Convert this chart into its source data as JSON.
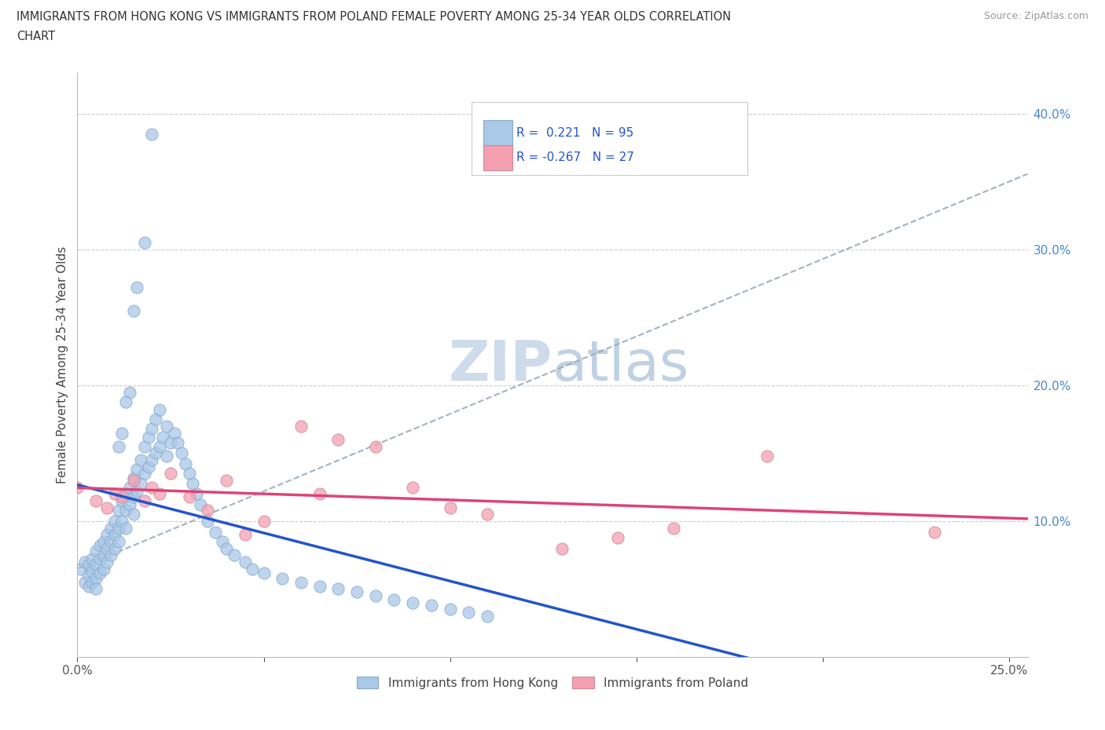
{
  "title_line1": "IMMIGRANTS FROM HONG KONG VS IMMIGRANTS FROM POLAND FEMALE POVERTY AMONG 25-34 YEAR OLDS CORRELATION",
  "title_line2": "CHART",
  "source": "Source: ZipAtlas.com",
  "ylabel": "Female Poverty Among 25-34 Year Olds",
  "xlim": [
    0.0,
    0.255
  ],
  "ylim": [
    0.0,
    0.43
  ],
  "hk_R": "0.221",
  "hk_N": "95",
  "pl_R": "-0.267",
  "pl_N": "27",
  "hk_color": "#aac8e8",
  "pl_color": "#f4a0b0",
  "trend_hk_color": "#2255cc",
  "trend_pl_color": "#dd4477",
  "trend_dash_color": "#99aabb",
  "watermark_color": "#c8d8e8",
  "legend_hk": "Immigrants from Hong Kong",
  "legend_pl": "Immigrants from Poland",
  "hk_x": [
    0.001,
    0.002,
    0.002,
    0.003,
    0.003,
    0.003,
    0.004,
    0.004,
    0.004,
    0.005,
    0.005,
    0.005,
    0.005,
    0.006,
    0.006,
    0.006,
    0.007,
    0.007,
    0.007,
    0.008,
    0.008,
    0.008,
    0.009,
    0.009,
    0.009,
    0.01,
    0.01,
    0.01,
    0.011,
    0.011,
    0.011,
    0.012,
    0.012,
    0.013,
    0.013,
    0.013,
    0.014,
    0.014,
    0.015,
    0.015,
    0.015,
    0.016,
    0.016,
    0.017,
    0.017,
    0.018,
    0.018,
    0.019,
    0.019,
    0.02,
    0.02,
    0.021,
    0.021,
    0.022,
    0.022,
    0.023,
    0.024,
    0.024,
    0.025,
    0.026,
    0.027,
    0.028,
    0.029,
    0.03,
    0.031,
    0.032,
    0.033,
    0.035,
    0.037,
    0.039,
    0.04,
    0.042,
    0.045,
    0.047,
    0.05,
    0.055,
    0.06,
    0.065,
    0.07,
    0.075,
    0.08,
    0.085,
    0.09,
    0.095,
    0.1,
    0.105,
    0.11,
    0.02,
    0.018,
    0.016,
    0.015,
    0.014,
    0.013,
    0.012,
    0.011
  ],
  "hk_y": [
    0.065,
    0.07,
    0.055,
    0.068,
    0.06,
    0.052,
    0.072,
    0.063,
    0.055,
    0.078,
    0.068,
    0.058,
    0.05,
    0.082,
    0.072,
    0.062,
    0.085,
    0.075,
    0.065,
    0.09,
    0.08,
    0.07,
    0.095,
    0.085,
    0.075,
    0.1,
    0.09,
    0.08,
    0.108,
    0.095,
    0.085,
    0.115,
    0.1,
    0.12,
    0.108,
    0.095,
    0.125,
    0.112,
    0.132,
    0.118,
    0.105,
    0.138,
    0.122,
    0.145,
    0.128,
    0.155,
    0.135,
    0.162,
    0.14,
    0.168,
    0.145,
    0.175,
    0.15,
    0.182,
    0.155,
    0.162,
    0.17,
    0.148,
    0.158,
    0.165,
    0.158,
    0.15,
    0.142,
    0.135,
    0.128,
    0.12,
    0.112,
    0.1,
    0.092,
    0.085,
    0.08,
    0.075,
    0.07,
    0.065,
    0.062,
    0.058,
    0.055,
    0.052,
    0.05,
    0.048,
    0.045,
    0.042,
    0.04,
    0.038,
    0.035,
    0.033,
    0.03,
    0.385,
    0.305,
    0.272,
    0.255,
    0.195,
    0.188,
    0.165,
    0.155
  ],
  "pl_x": [
    0.0,
    0.005,
    0.008,
    0.01,
    0.012,
    0.015,
    0.018,
    0.02,
    0.022,
    0.025,
    0.03,
    0.035,
    0.04,
    0.045,
    0.05,
    0.06,
    0.065,
    0.07,
    0.08,
    0.09,
    0.1,
    0.11,
    0.13,
    0.145,
    0.16,
    0.185,
    0.23
  ],
  "pl_y": [
    0.125,
    0.115,
    0.11,
    0.12,
    0.118,
    0.13,
    0.115,
    0.125,
    0.12,
    0.135,
    0.118,
    0.108,
    0.13,
    0.09,
    0.1,
    0.17,
    0.12,
    0.16,
    0.155,
    0.125,
    0.11,
    0.105,
    0.08,
    0.088,
    0.095,
    0.148,
    0.092
  ]
}
